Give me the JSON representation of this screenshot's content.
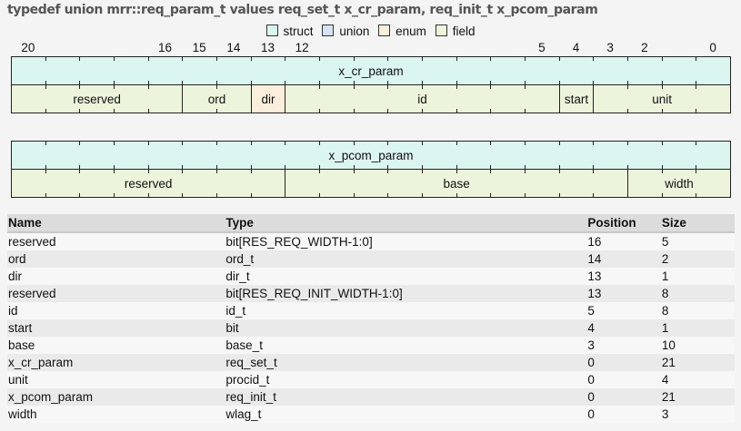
{
  "title": "typedef union mrr::req_param_t values req_set_t x_cr_param, req_init_t x_pcom_param",
  "colors": {
    "struct": "#dbf5f0",
    "union": "#d6e2f6",
    "enum": "#fbeedb",
    "field": "#edf4dc"
  },
  "legend": [
    {
      "kind": "struct",
      "label": "struct"
    },
    {
      "kind": "union",
      "label": "union"
    },
    {
      "kind": "enum",
      "label": "enum"
    },
    {
      "kind": "field",
      "label": "field"
    }
  ],
  "bit_width": 21,
  "bit_labels": [
    20,
    16,
    15,
    14,
    13,
    12,
    5,
    4,
    3,
    2,
    0
  ],
  "layouts": [
    {
      "name": "x_cr_param",
      "fields": [
        {
          "name": "reserved",
          "msb": 20,
          "lsb": 16,
          "kind": "field"
        },
        {
          "name": "ord",
          "msb": 15,
          "lsb": 14,
          "kind": "field"
        },
        {
          "name": "dir",
          "msb": 13,
          "lsb": 13,
          "kind": "enum"
        },
        {
          "name": "id",
          "msb": 12,
          "lsb": 5,
          "kind": "field"
        },
        {
          "name": "start",
          "msb": 4,
          "lsb": 4,
          "kind": "field"
        },
        {
          "name": "unit",
          "msb": 3,
          "lsb": 0,
          "kind": "field"
        }
      ]
    },
    {
      "name": "x_pcom_param",
      "fields": [
        {
          "name": "reserved",
          "msb": 20,
          "lsb": 13,
          "kind": "field"
        },
        {
          "name": "base",
          "msb": 12,
          "lsb": 3,
          "kind": "field"
        },
        {
          "name": "width",
          "msb": 2,
          "lsb": 0,
          "kind": "field"
        }
      ]
    }
  ],
  "table": {
    "headers": [
      "Name",
      "Type",
      "Position",
      "Size"
    ],
    "rows": [
      [
        "reserved",
        "bit[RES_REQ_WIDTH-1:0]",
        "16",
        "5"
      ],
      [
        "ord",
        "ord_t",
        "14",
        "2"
      ],
      [
        "dir",
        "dir_t",
        "13",
        "1"
      ],
      [
        "reserved",
        "bit[RES_REQ_INIT_WIDTH-1:0]",
        "13",
        "8"
      ],
      [
        "id",
        "id_t",
        "5",
        "8"
      ],
      [
        "start",
        "bit",
        "4",
        "1"
      ],
      [
        "base",
        "base_t",
        "3",
        "10"
      ],
      [
        "x_cr_param",
        "req_set_t",
        "0",
        "21"
      ],
      [
        "unit",
        "procid_t",
        "0",
        "4"
      ],
      [
        "x_pcom_param",
        "req_init_t",
        "0",
        "21"
      ],
      [
        "width",
        "wlag_t",
        "0",
        "3"
      ]
    ]
  }
}
